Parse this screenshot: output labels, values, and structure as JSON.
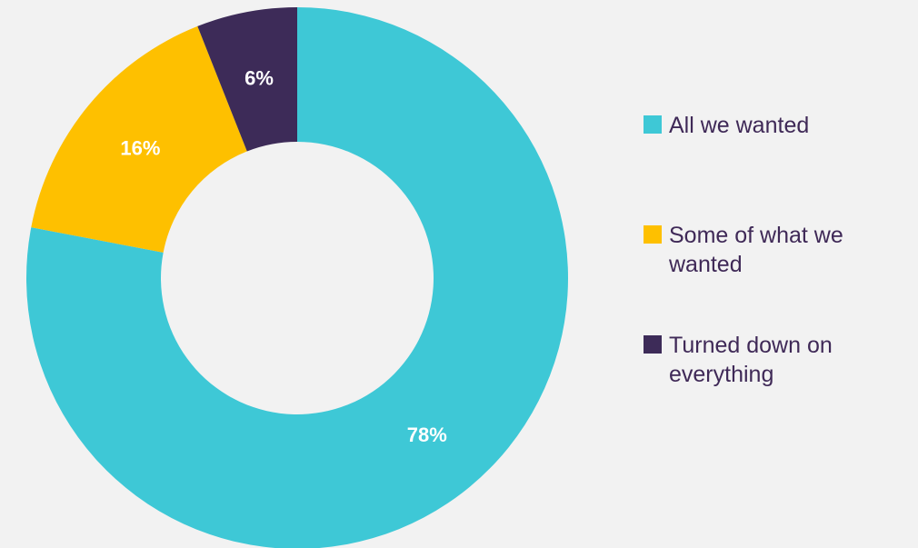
{
  "chart_data": {
    "type": "pie",
    "donut": true,
    "categories": [
      "All we wanted",
      "Some of what we wanted",
      "Turned down on everything"
    ],
    "values": [
      78,
      16,
      6
    ],
    "value_labels": [
      "78%",
      "16%",
      "6%"
    ],
    "colors": [
      "#3ec8d6",
      "#fec000",
      "#3d2b58"
    ],
    "label_colors": [
      "#ffffff",
      "#ffffff",
      "#ffffff"
    ],
    "legend_position": "right",
    "title": ""
  }
}
